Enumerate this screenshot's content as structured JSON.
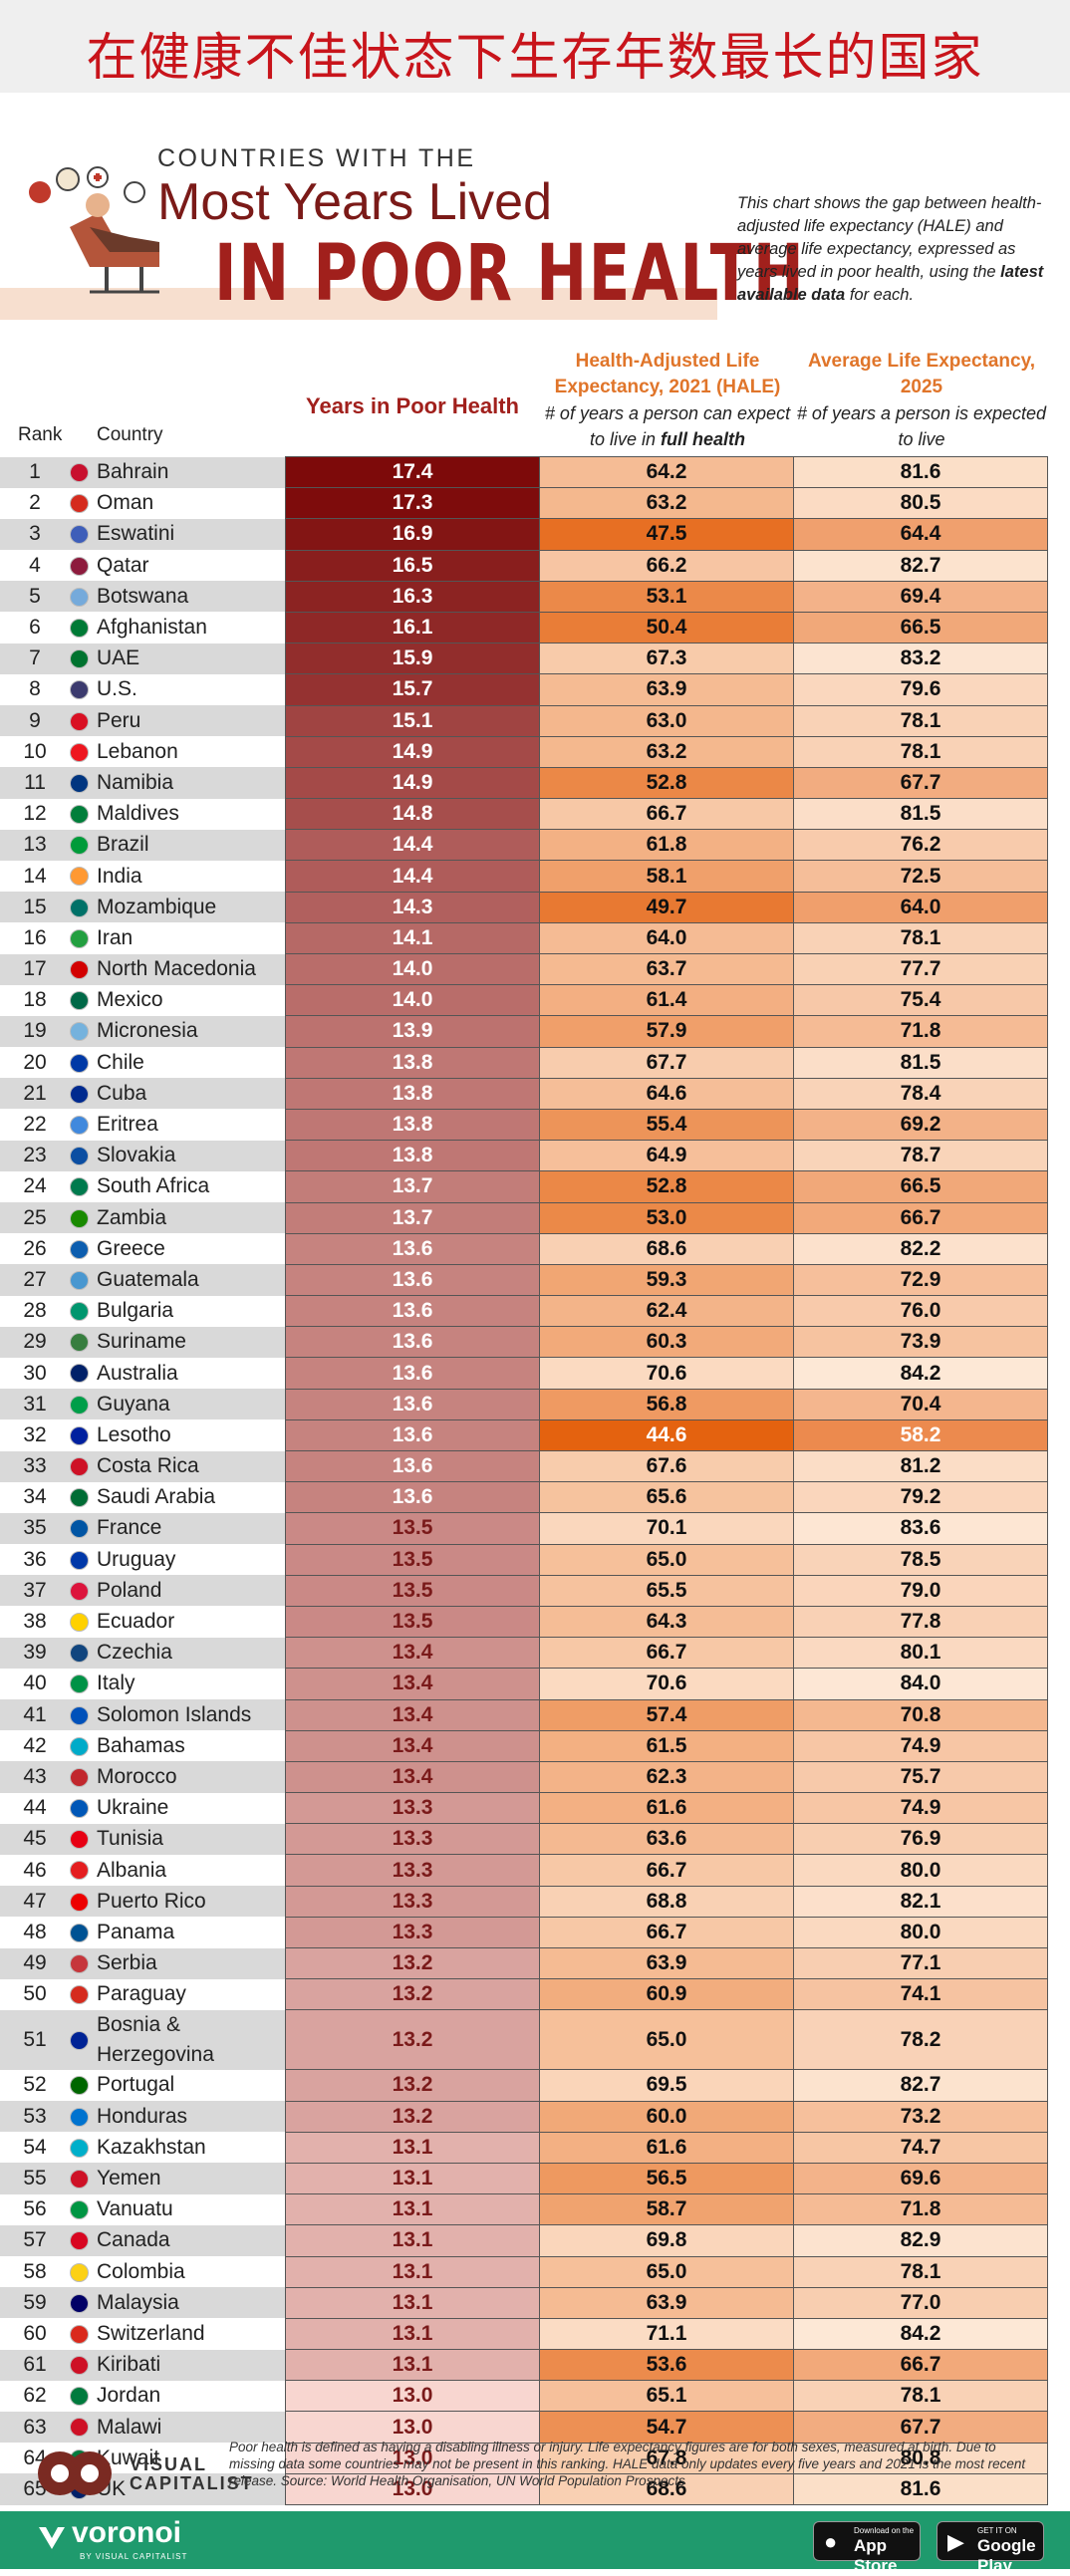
{
  "cn_title": "在健康不佳状态下生存年数最长的国家",
  "title": {
    "pre": "COUNTRIES WITH THE",
    "main": "Most Years Lived",
    "highlight": "IN POOR HEALTH"
  },
  "description": {
    "part1": "This chart shows the gap between health-adjusted life expectancy (HALE) and average life expectancy, expressed as years lived in poor health, using the ",
    "bold": "latest available data",
    "part2": " for each."
  },
  "headers": {
    "rank": "Rank",
    "country": "Country",
    "years": "Years in Poor Health",
    "hale_title": "Health-Adjusted Life Expectancy, 2021 (HALE)",
    "hale_sub_pre": "# of years a person can expect to live in ",
    "hale_sub_bold": "full health",
    "avg_title": "Average Life Expectancy, 2025",
    "avg_sub": "# of years a person is expected to live"
  },
  "colors": {
    "years_dark": "#7d0a0a",
    "years_light": "#f8d6d0",
    "hale_dark": "#e4620f",
    "hale_light": "#fbdcc4",
    "avg_dark": "#ec8a4e",
    "avg_light": "#fde8d6",
    "title_red": "#a1201c"
  },
  "chart_data": {
    "type": "table",
    "title": "Countries with the Most Years Lived in Poor Health",
    "columns": [
      "Rank",
      "Country",
      "Years in Poor Health",
      "Health-Adjusted Life Expectancy, 2021 (HALE)",
      "Average Life Expectancy, 2025"
    ],
    "rows": [
      {
        "rank": "1",
        "country": "Bahrain",
        "years": "17.4",
        "hale": "64.2",
        "avg": "81.6",
        "flag": "#c8102e"
      },
      {
        "rank": "2",
        "country": "Oman",
        "years": "17.3",
        "hale": "63.2",
        "avg": "80.5",
        "flag": "#d52b1e"
      },
      {
        "rank": "3",
        "country": "Eswatini",
        "years": "16.9",
        "hale": "47.5",
        "avg": "64.4",
        "flag": "#3e5eb9"
      },
      {
        "rank": "4",
        "country": "Qatar",
        "years": "16.5",
        "hale": "66.2",
        "avg": "82.7",
        "flag": "#8d1b3d"
      },
      {
        "rank": "5",
        "country": "Botswana",
        "years": "16.3",
        "hale": "53.1",
        "avg": "69.4",
        "flag": "#75aadb"
      },
      {
        "rank": "6",
        "country": "Afghanistan",
        "years": "16.1",
        "hale": "50.4",
        "avg": "66.5",
        "flag": "#007a36"
      },
      {
        "rank": "7",
        "country": "UAE",
        "years": "15.9",
        "hale": "67.3",
        "avg": "83.2",
        "flag": "#00732f"
      },
      {
        "rank": "8",
        "country": "U.S.",
        "years": "15.7",
        "hale": "63.9",
        "avg": "79.6",
        "flag": "#3c3b6e"
      },
      {
        "rank": "9",
        "country": "Peru",
        "years": "15.1",
        "hale": "63.0",
        "avg": "78.1",
        "flag": "#d91023"
      },
      {
        "rank": "10",
        "country": "Lebanon",
        "years": "14.9",
        "hale": "63.2",
        "avg": "78.1",
        "flag": "#ee161f"
      },
      {
        "rank": "11",
        "country": "Namibia",
        "years": "14.9",
        "hale": "52.8",
        "avg": "67.7",
        "flag": "#003580"
      },
      {
        "rank": "12",
        "country": "Maldives",
        "years": "14.8",
        "hale": "66.7",
        "avg": "81.5",
        "flag": "#007e3a"
      },
      {
        "rank": "13",
        "country": "Brazil",
        "years": "14.4",
        "hale": "61.8",
        "avg": "76.2",
        "flag": "#009b3a"
      },
      {
        "rank": "14",
        "country": "India",
        "years": "14.4",
        "hale": "58.1",
        "avg": "72.5",
        "flag": "#ff9933"
      },
      {
        "rank": "15",
        "country": "Mozambique",
        "years": "14.3",
        "hale": "49.7",
        "avg": "64.0",
        "flag": "#007168"
      },
      {
        "rank": "16",
        "country": "Iran",
        "years": "14.1",
        "hale": "64.0",
        "avg": "78.1",
        "flag": "#239f40"
      },
      {
        "rank": "17",
        "country": "North Macedonia",
        "years": "14.0",
        "hale": "63.7",
        "avg": "77.7",
        "flag": "#d20000"
      },
      {
        "rank": "18",
        "country": "Mexico",
        "years": "14.0",
        "hale": "61.4",
        "avg": "75.4",
        "flag": "#006847"
      },
      {
        "rank": "19",
        "country": "Micronesia",
        "years": "13.9",
        "hale": "57.9",
        "avg": "71.8",
        "flag": "#75b2dd"
      },
      {
        "rank": "20",
        "country": "Chile",
        "years": "13.8",
        "hale": "67.7",
        "avg": "81.5",
        "flag": "#0039a6"
      },
      {
        "rank": "21",
        "country": "Cuba",
        "years": "13.8",
        "hale": "64.6",
        "avg": "78.4",
        "flag": "#002a8f"
      },
      {
        "rank": "22",
        "country": "Eritrea",
        "years": "13.8",
        "hale": "55.4",
        "avg": "69.2",
        "flag": "#4189dd"
      },
      {
        "rank": "23",
        "country": "Slovakia",
        "years": "13.8",
        "hale": "64.9",
        "avg": "78.7",
        "flag": "#0b4ea2"
      },
      {
        "rank": "24",
        "country": "South Africa",
        "years": "13.7",
        "hale": "52.8",
        "avg": "66.5",
        "flag": "#007a4d"
      },
      {
        "rank": "25",
        "country": "Zambia",
        "years": "13.7",
        "hale": "53.0",
        "avg": "66.7",
        "flag": "#198a00"
      },
      {
        "rank": "26",
        "country": "Greece",
        "years": "13.6",
        "hale": "68.6",
        "avg": "82.2",
        "flag": "#0d5eaf"
      },
      {
        "rank": "27",
        "country": "Guatemala",
        "years": "13.6",
        "hale": "59.3",
        "avg": "72.9",
        "flag": "#4997d0"
      },
      {
        "rank": "28",
        "country": "Bulgaria",
        "years": "13.6",
        "hale": "62.4",
        "avg": "76.0",
        "flag": "#00966e"
      },
      {
        "rank": "29",
        "country": "Suriname",
        "years": "13.6",
        "hale": "60.3",
        "avg": "73.9",
        "flag": "#377e3f"
      },
      {
        "rank": "30",
        "country": "Australia",
        "years": "13.6",
        "hale": "70.6",
        "avg": "84.2",
        "flag": "#012169"
      },
      {
        "rank": "31",
        "country": "Guyana",
        "years": "13.6",
        "hale": "56.8",
        "avg": "70.4",
        "flag": "#009e49"
      },
      {
        "rank": "32",
        "country": "Lesotho",
        "years": "13.6",
        "hale": "44.6",
        "avg": "58.2",
        "flag": "#00209f"
      },
      {
        "rank": "33",
        "country": "Costa Rica",
        "years": "13.6",
        "hale": "67.6",
        "avg": "81.2",
        "flag": "#ce1126"
      },
      {
        "rank": "34",
        "country": "Saudi Arabia",
        "years": "13.6",
        "hale": "65.6",
        "avg": "79.2",
        "flag": "#006c35"
      },
      {
        "rank": "35",
        "country": "France",
        "years": "13.5",
        "hale": "70.1",
        "avg": "83.6",
        "flag": "#0055a4"
      },
      {
        "rank": "36",
        "country": "Uruguay",
        "years": "13.5",
        "hale": "65.0",
        "avg": "78.5",
        "flag": "#0038a8"
      },
      {
        "rank": "37",
        "country": "Poland",
        "years": "13.5",
        "hale": "65.5",
        "avg": "79.0",
        "flag": "#dc143c"
      },
      {
        "rank": "38",
        "country": "Ecuador",
        "years": "13.5",
        "hale": "64.3",
        "avg": "77.8",
        "flag": "#ffd100"
      },
      {
        "rank": "39",
        "country": "Czechia",
        "years": "13.4",
        "hale": "66.7",
        "avg": "80.1",
        "flag": "#11457e"
      },
      {
        "rank": "40",
        "country": "Italy",
        "years": "13.4",
        "hale": "70.6",
        "avg": "84.0",
        "flag": "#009246"
      },
      {
        "rank": "41",
        "country": "Solomon Islands",
        "years": "13.4",
        "hale": "57.4",
        "avg": "70.8",
        "flag": "#0051ba"
      },
      {
        "rank": "42",
        "country": "Bahamas",
        "years": "13.4",
        "hale": "61.5",
        "avg": "74.9",
        "flag": "#00abc9"
      },
      {
        "rank": "43",
        "country": "Morocco",
        "years": "13.4",
        "hale": "62.3",
        "avg": "75.7",
        "flag": "#c1272d"
      },
      {
        "rank": "44",
        "country": "Ukraine",
        "years": "13.3",
        "hale": "61.6",
        "avg": "74.9",
        "flag": "#0057b7"
      },
      {
        "rank": "45",
        "country": "Tunisia",
        "years": "13.3",
        "hale": "63.6",
        "avg": "76.9",
        "flag": "#e70013"
      },
      {
        "rank": "46",
        "country": "Albania",
        "years": "13.3",
        "hale": "66.7",
        "avg": "80.0",
        "flag": "#e41e20"
      },
      {
        "rank": "47",
        "country": "Puerto Rico",
        "years": "13.3",
        "hale": "68.8",
        "avg": "82.1",
        "flag": "#ed0000"
      },
      {
        "rank": "48",
        "country": "Panama",
        "years": "13.3",
        "hale": "66.7",
        "avg": "80.0",
        "flag": "#005293"
      },
      {
        "rank": "49",
        "country": "Serbia",
        "years": "13.2",
        "hale": "63.9",
        "avg": "77.1",
        "flag": "#c6363c"
      },
      {
        "rank": "50",
        "country": "Paraguay",
        "years": "13.2",
        "hale": "60.9",
        "avg": "74.1",
        "flag": "#d52b1e"
      },
      {
        "rank": "51",
        "country": "Bosnia & Herzegovina",
        "years": "13.2",
        "hale": "65.0",
        "avg": "78.2",
        "flag": "#002395"
      },
      {
        "rank": "52",
        "country": "Portugal",
        "years": "13.2",
        "hale": "69.5",
        "avg": "82.7",
        "flag": "#006600"
      },
      {
        "rank": "53",
        "country": "Honduras",
        "years": "13.2",
        "hale": "60.0",
        "avg": "73.2",
        "flag": "#0073cf"
      },
      {
        "rank": "54",
        "country": "Kazakhstan",
        "years": "13.1",
        "hale": "61.6",
        "avg": "74.7",
        "flag": "#00afca"
      },
      {
        "rank": "55",
        "country": "Yemen",
        "years": "13.1",
        "hale": "56.5",
        "avg": "69.6",
        "flag": "#ce1126"
      },
      {
        "rank": "56",
        "country": "Vanuatu",
        "years": "13.1",
        "hale": "58.7",
        "avg": "71.8",
        "flag": "#009543"
      },
      {
        "rank": "57",
        "country": "Canada",
        "years": "13.1",
        "hale": "69.8",
        "avg": "82.9",
        "flag": "#d80621"
      },
      {
        "rank": "58",
        "country": "Colombia",
        "years": "13.1",
        "hale": "65.0",
        "avg": "78.1",
        "flag": "#fcd116"
      },
      {
        "rank": "59",
        "country": "Malaysia",
        "years": "13.1",
        "hale": "63.9",
        "avg": "77.0",
        "flag": "#010066"
      },
      {
        "rank": "60",
        "country": "Switzerland",
        "years": "13.1",
        "hale": "71.1",
        "avg": "84.2",
        "flag": "#da291c"
      },
      {
        "rank": "61",
        "country": "Kiribati",
        "years": "13.1",
        "hale": "53.6",
        "avg": "66.7",
        "flag": "#ce1126"
      },
      {
        "rank": "62",
        "country": "Jordan",
        "years": "13.0",
        "hale": "65.1",
        "avg": "78.1",
        "flag": "#007a3d"
      },
      {
        "rank": "63",
        "country": "Malawi",
        "years": "13.0",
        "hale": "54.7",
        "avg": "67.7",
        "flag": "#ce1126"
      },
      {
        "rank": "64",
        "country": "Kuwait",
        "years": "13.0",
        "hale": "67.8",
        "avg": "80.8",
        "flag": "#007a3d"
      },
      {
        "rank": "65",
        "country": "UK",
        "years": "13.0",
        "hale": "68.6",
        "avg": "81.6",
        "flag": "#012169"
      }
    ]
  },
  "footnote": "Poor health is defined as having a disabling illness or injury. Life expectancy figures are for both sexes, measured at birth. Due to missing data some countries may not be present in this ranking. HALE data only updates every five years and 2021 is the most recent release. Source: World Health Organisation, UN World Population Prospects",
  "brand": {
    "vc_line1": "VISUAL",
    "vc_line2": "CAPITALIST",
    "voronoi": "voronoi",
    "voronoi_sub": "BY VISUAL CAPITALIST",
    "appstore_small": "Download on the",
    "appstore": "App Store",
    "googleplay_small": "GET IT ON",
    "googleplay": "Google Play"
  }
}
